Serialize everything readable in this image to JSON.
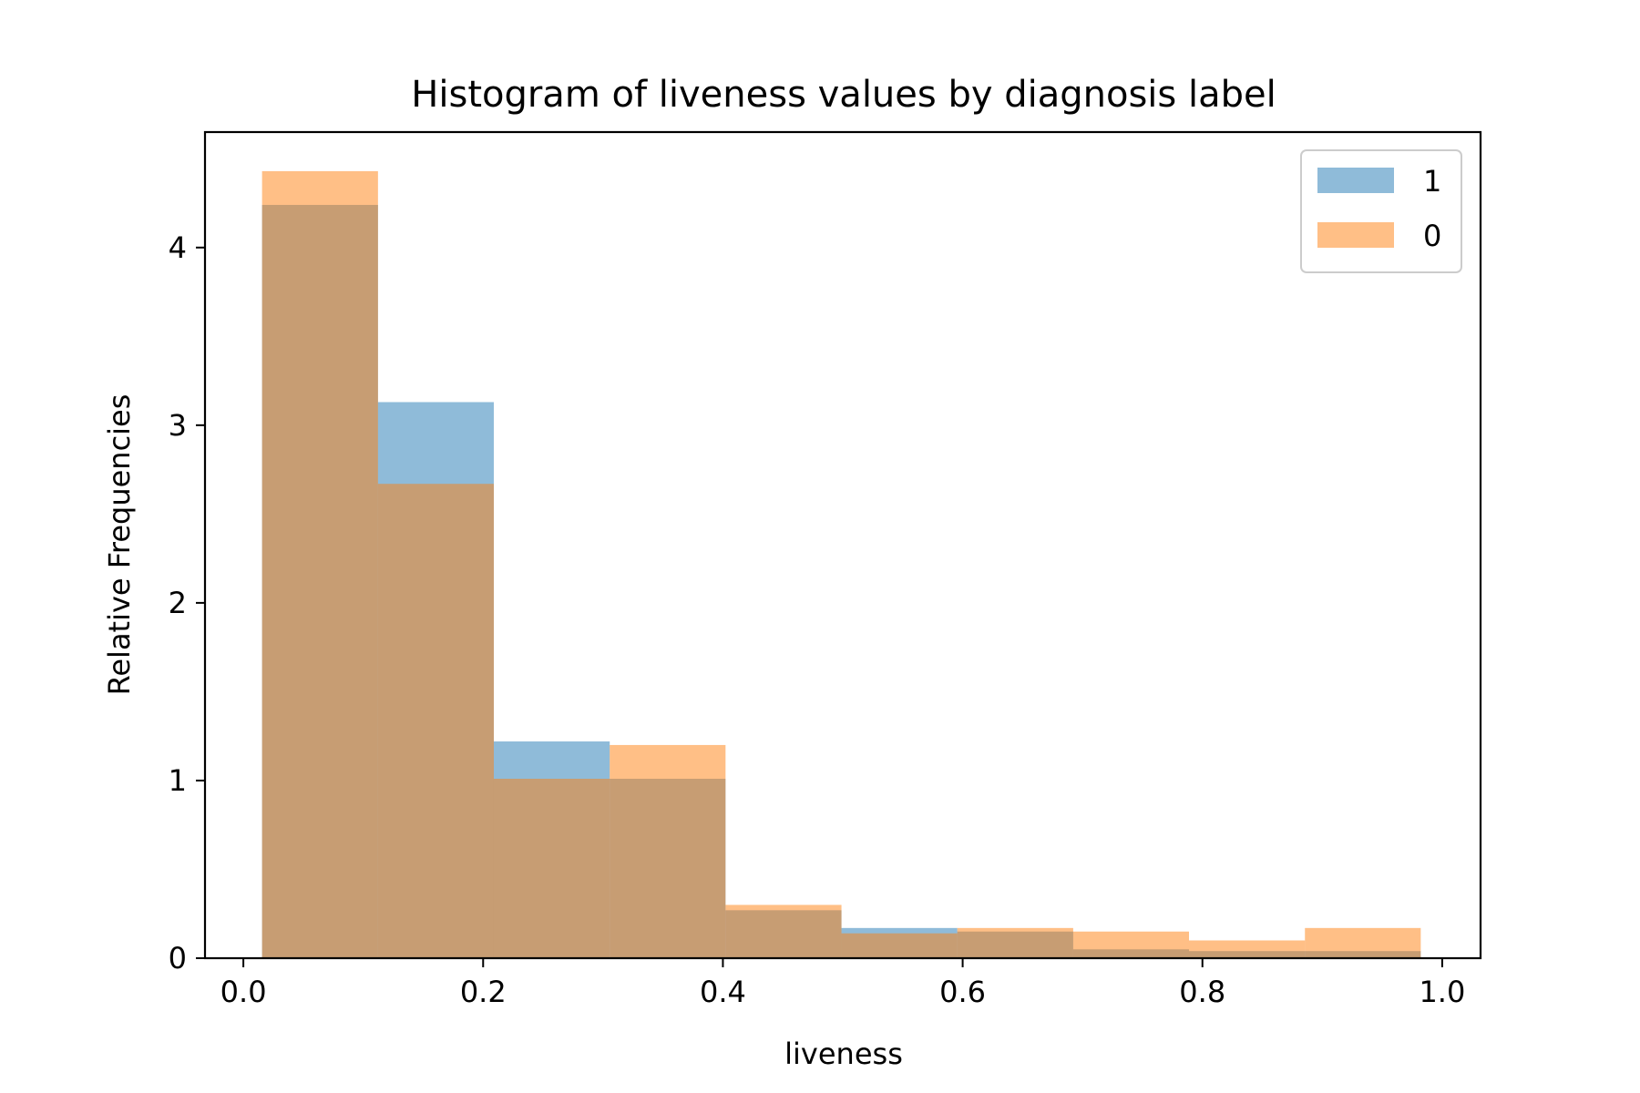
{
  "chart_data": {
    "type": "bar",
    "title": "Histogram of liveness values by diagnosis label",
    "xlabel": "liveness",
    "ylabel": "Relative Frequencies",
    "xlim": [
      -0.032,
      1.032
    ],
    "ylim": [
      0,
      4.65
    ],
    "xticks": [
      0.0,
      0.2,
      0.4,
      0.6,
      0.8,
      1.0
    ],
    "xtick_labels": [
      "0.0",
      "0.2",
      "0.4",
      "0.6",
      "0.8",
      "1.0"
    ],
    "yticks": [
      0,
      1,
      2,
      3,
      4
    ],
    "ytick_labels": [
      "0",
      "1",
      "2",
      "3",
      "4"
    ],
    "bin_edges": [
      0.0156,
      0.1123,
      0.2089,
      0.3056,
      0.4022,
      0.4989,
      0.5955,
      0.6922,
      0.7888,
      0.8855,
      0.9821
    ],
    "series": [
      {
        "name": "1",
        "color": "#1f77b4",
        "opacity": 0.5,
        "values": [
          4.24,
          3.13,
          1.22,
          1.01,
          0.27,
          0.17,
          0.15,
          0.05,
          0.04,
          0.04
        ]
      },
      {
        "name": "0",
        "color": "#ff7f0e",
        "opacity": 0.5,
        "values": [
          4.43,
          2.67,
          1.01,
          1.2,
          0.3,
          0.14,
          0.17,
          0.15,
          0.1,
          0.17
        ]
      }
    ],
    "grid": false,
    "legend_position": "top-right"
  }
}
